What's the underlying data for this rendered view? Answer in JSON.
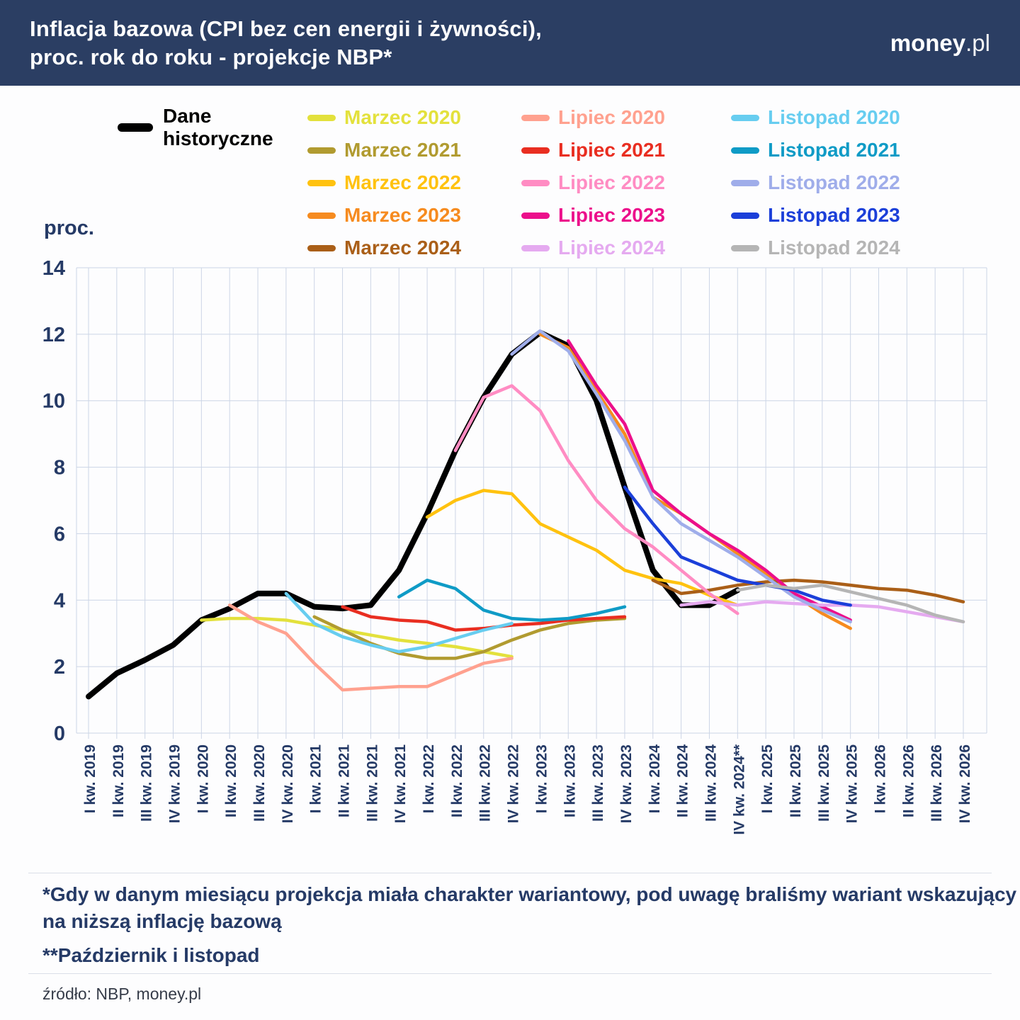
{
  "header": {
    "title_line1": "Inflacja bazowa (CPI bez cen energii i żywności),",
    "title_line2": "proc. rok do roku - projekcje NBP*",
    "logo_bold": "money",
    "logo_rest": ".pl"
  },
  "legend": {
    "historical_line1": "Dane",
    "historical_line2": "historyczne"
  },
  "footnotes": {
    "note1_line1": "*Gdy w danym miesiącu projekcja miała charakter wariantowy, pod uwagę braliśmy wariant wskazujący",
    "note1_line2": "na niższą inflację bazową",
    "note2": "**Październik i listopad",
    "source": "źródło: NBP, money.pl"
  },
  "colors": {
    "header_bg": "#2b3e63",
    "axis_text": "#253a66",
    "grid": "#ccd5e6",
    "historical": "#000000"
  },
  "chart_data": {
    "type": "line",
    "title": "Inflacja bazowa (CPI bez cen energii i żywności), proc. rok do roku - projekcje NBP",
    "ylabel": "proc.",
    "ylim": [
      0,
      14
    ],
    "yticks": [
      0,
      2,
      4,
      6,
      8,
      10,
      12,
      14
    ],
    "grid": true,
    "legend_position": "top",
    "categories": [
      "I kw. 2019",
      "II kw. 2019",
      "III kw. 2019",
      "IV kw. 2019",
      "I kw. 2020",
      "II kw. 2020",
      "III kw. 2020",
      "IV kw. 2020",
      "I kw. 2021",
      "II kw. 2021",
      "III kw. 2021",
      "IV kw. 2021",
      "I kw. 2022",
      "II kw. 2022",
      "III kw. 2022",
      "IV kw. 2022",
      "I kw. 2023",
      "II kw. 2023",
      "III kw. 2023",
      "IV kw. 2023",
      "I kw. 2024",
      "II kw. 2024",
      "III kw. 2024",
      "IV kw. 2024**",
      "I kw. 2025",
      "II kw. 2025",
      "III kw. 2025",
      "IV kw. 2025",
      "I kw. 2026",
      "II kw. 2026",
      "III kw. 2026",
      "IV kw. 2026"
    ],
    "series": [
      {
        "name": "Dane historyczne",
        "color": "#000000",
        "width": 8,
        "start": 0,
        "values": [
          1.1,
          1.8,
          2.2,
          2.65,
          3.4,
          3.75,
          4.2,
          4.2,
          3.8,
          3.75,
          3.85,
          4.9,
          6.6,
          8.5,
          10.1,
          11.4,
          12.05,
          11.65,
          10.0,
          7.4,
          4.9,
          3.85,
          3.85,
          4.3
        ]
      },
      {
        "name": "Marzec 2020",
        "color": "#e3e13c",
        "width": 4.5,
        "start": 4,
        "values": [
          3.4,
          3.45,
          3.45,
          3.4,
          3.25,
          3.1,
          2.95,
          2.8,
          2.7,
          2.6,
          2.45,
          2.3
        ]
      },
      {
        "name": "Marzec 2021",
        "color": "#b19b30",
        "width": 4.5,
        "start": 8,
        "values": [
          3.5,
          3.1,
          2.7,
          2.4,
          2.25,
          2.25,
          2.45,
          2.8,
          3.1,
          3.3,
          3.4,
          3.45
        ]
      },
      {
        "name": "Marzec 2022",
        "color": "#ffc20f",
        "width": 4.5,
        "start": 12,
        "values": [
          6.5,
          7.0,
          7.3,
          7.2,
          6.3,
          5.9,
          5.5,
          4.9,
          4.65,
          4.5,
          4.15,
          3.85
        ]
      },
      {
        "name": "Marzec 2023",
        "color": "#f68b1f",
        "width": 4.5,
        "start": 16,
        "values": [
          12.0,
          11.6,
          10.3,
          9.0,
          7.1,
          6.6,
          6.0,
          5.4,
          4.8,
          4.15,
          3.6,
          3.15
        ]
      },
      {
        "name": "Marzec 2024",
        "color": "#aa5f18",
        "width": 4.5,
        "start": 20,
        "values": [
          4.6,
          4.2,
          4.3,
          4.45,
          4.55,
          4.6,
          4.55,
          4.45,
          4.35,
          4.3,
          4.15,
          3.95
        ]
      },
      {
        "name": "Lipiec 2020",
        "color": "#ffa18f",
        "width": 4.5,
        "start": 5,
        "values": [
          3.85,
          3.35,
          3.0,
          2.1,
          1.3,
          1.35,
          1.4,
          1.4,
          1.75,
          2.1,
          2.25
        ]
      },
      {
        "name": "Lipiec 2021",
        "color": "#e92e21",
        "width": 4.5,
        "start": 9,
        "values": [
          3.8,
          3.5,
          3.4,
          3.35,
          3.1,
          3.15,
          3.25,
          3.3,
          3.4,
          3.45,
          3.5
        ]
      },
      {
        "name": "Lipiec 2022",
        "color": "#ff8cc3",
        "width": 4.5,
        "start": 13,
        "values": [
          8.5,
          10.1,
          10.45,
          9.7,
          8.2,
          7.0,
          6.15,
          5.6,
          4.9,
          4.2,
          3.6
        ]
      },
      {
        "name": "Lipiec 2023",
        "color": "#ec0f8b",
        "width": 4.5,
        "start": 17,
        "values": [
          11.8,
          10.45,
          9.3,
          7.3,
          6.6,
          6.0,
          5.5,
          4.9,
          4.2,
          3.8,
          3.4
        ]
      },
      {
        "name": "Lipiec 2024",
        "color": "#e5aaf0",
        "width": 4.5,
        "start": 21,
        "values": [
          3.85,
          3.95,
          3.85,
          3.95,
          3.9,
          3.85,
          3.85,
          3.8,
          3.65,
          3.5,
          3.35
        ]
      },
      {
        "name": "Listopad 2020",
        "color": "#67cdf0",
        "width": 4.5,
        "start": 7,
        "values": [
          4.2,
          3.3,
          2.9,
          2.65,
          2.45,
          2.6,
          2.85,
          3.1,
          3.3
        ]
      },
      {
        "name": "Listopad 2021",
        "color": "#0f9bc6",
        "width": 4.5,
        "start": 11,
        "values": [
          4.1,
          4.6,
          4.35,
          3.7,
          3.45,
          3.4,
          3.45,
          3.6,
          3.8
        ]
      },
      {
        "name": "Listopad 2022",
        "color": "#9fadea",
        "width": 4.5,
        "start": 15,
        "values": [
          11.4,
          12.1,
          11.5,
          10.2,
          8.8,
          7.1,
          6.3,
          5.8,
          5.3,
          4.7,
          4.1,
          3.7,
          3.35
        ]
      },
      {
        "name": "Listopad 2023",
        "color": "#1b3fd9",
        "width": 4.5,
        "start": 19,
        "values": [
          7.4,
          6.3,
          5.3,
          4.95,
          4.6,
          4.45,
          4.3,
          4.0,
          3.85
        ]
      },
      {
        "name": "Listopad 2024",
        "color": "#b5b5b5",
        "width": 4.5,
        "start": 23,
        "values": [
          4.3,
          4.45,
          4.35,
          4.45,
          4.25,
          4.05,
          3.85,
          3.55,
          3.35
        ]
      }
    ]
  }
}
